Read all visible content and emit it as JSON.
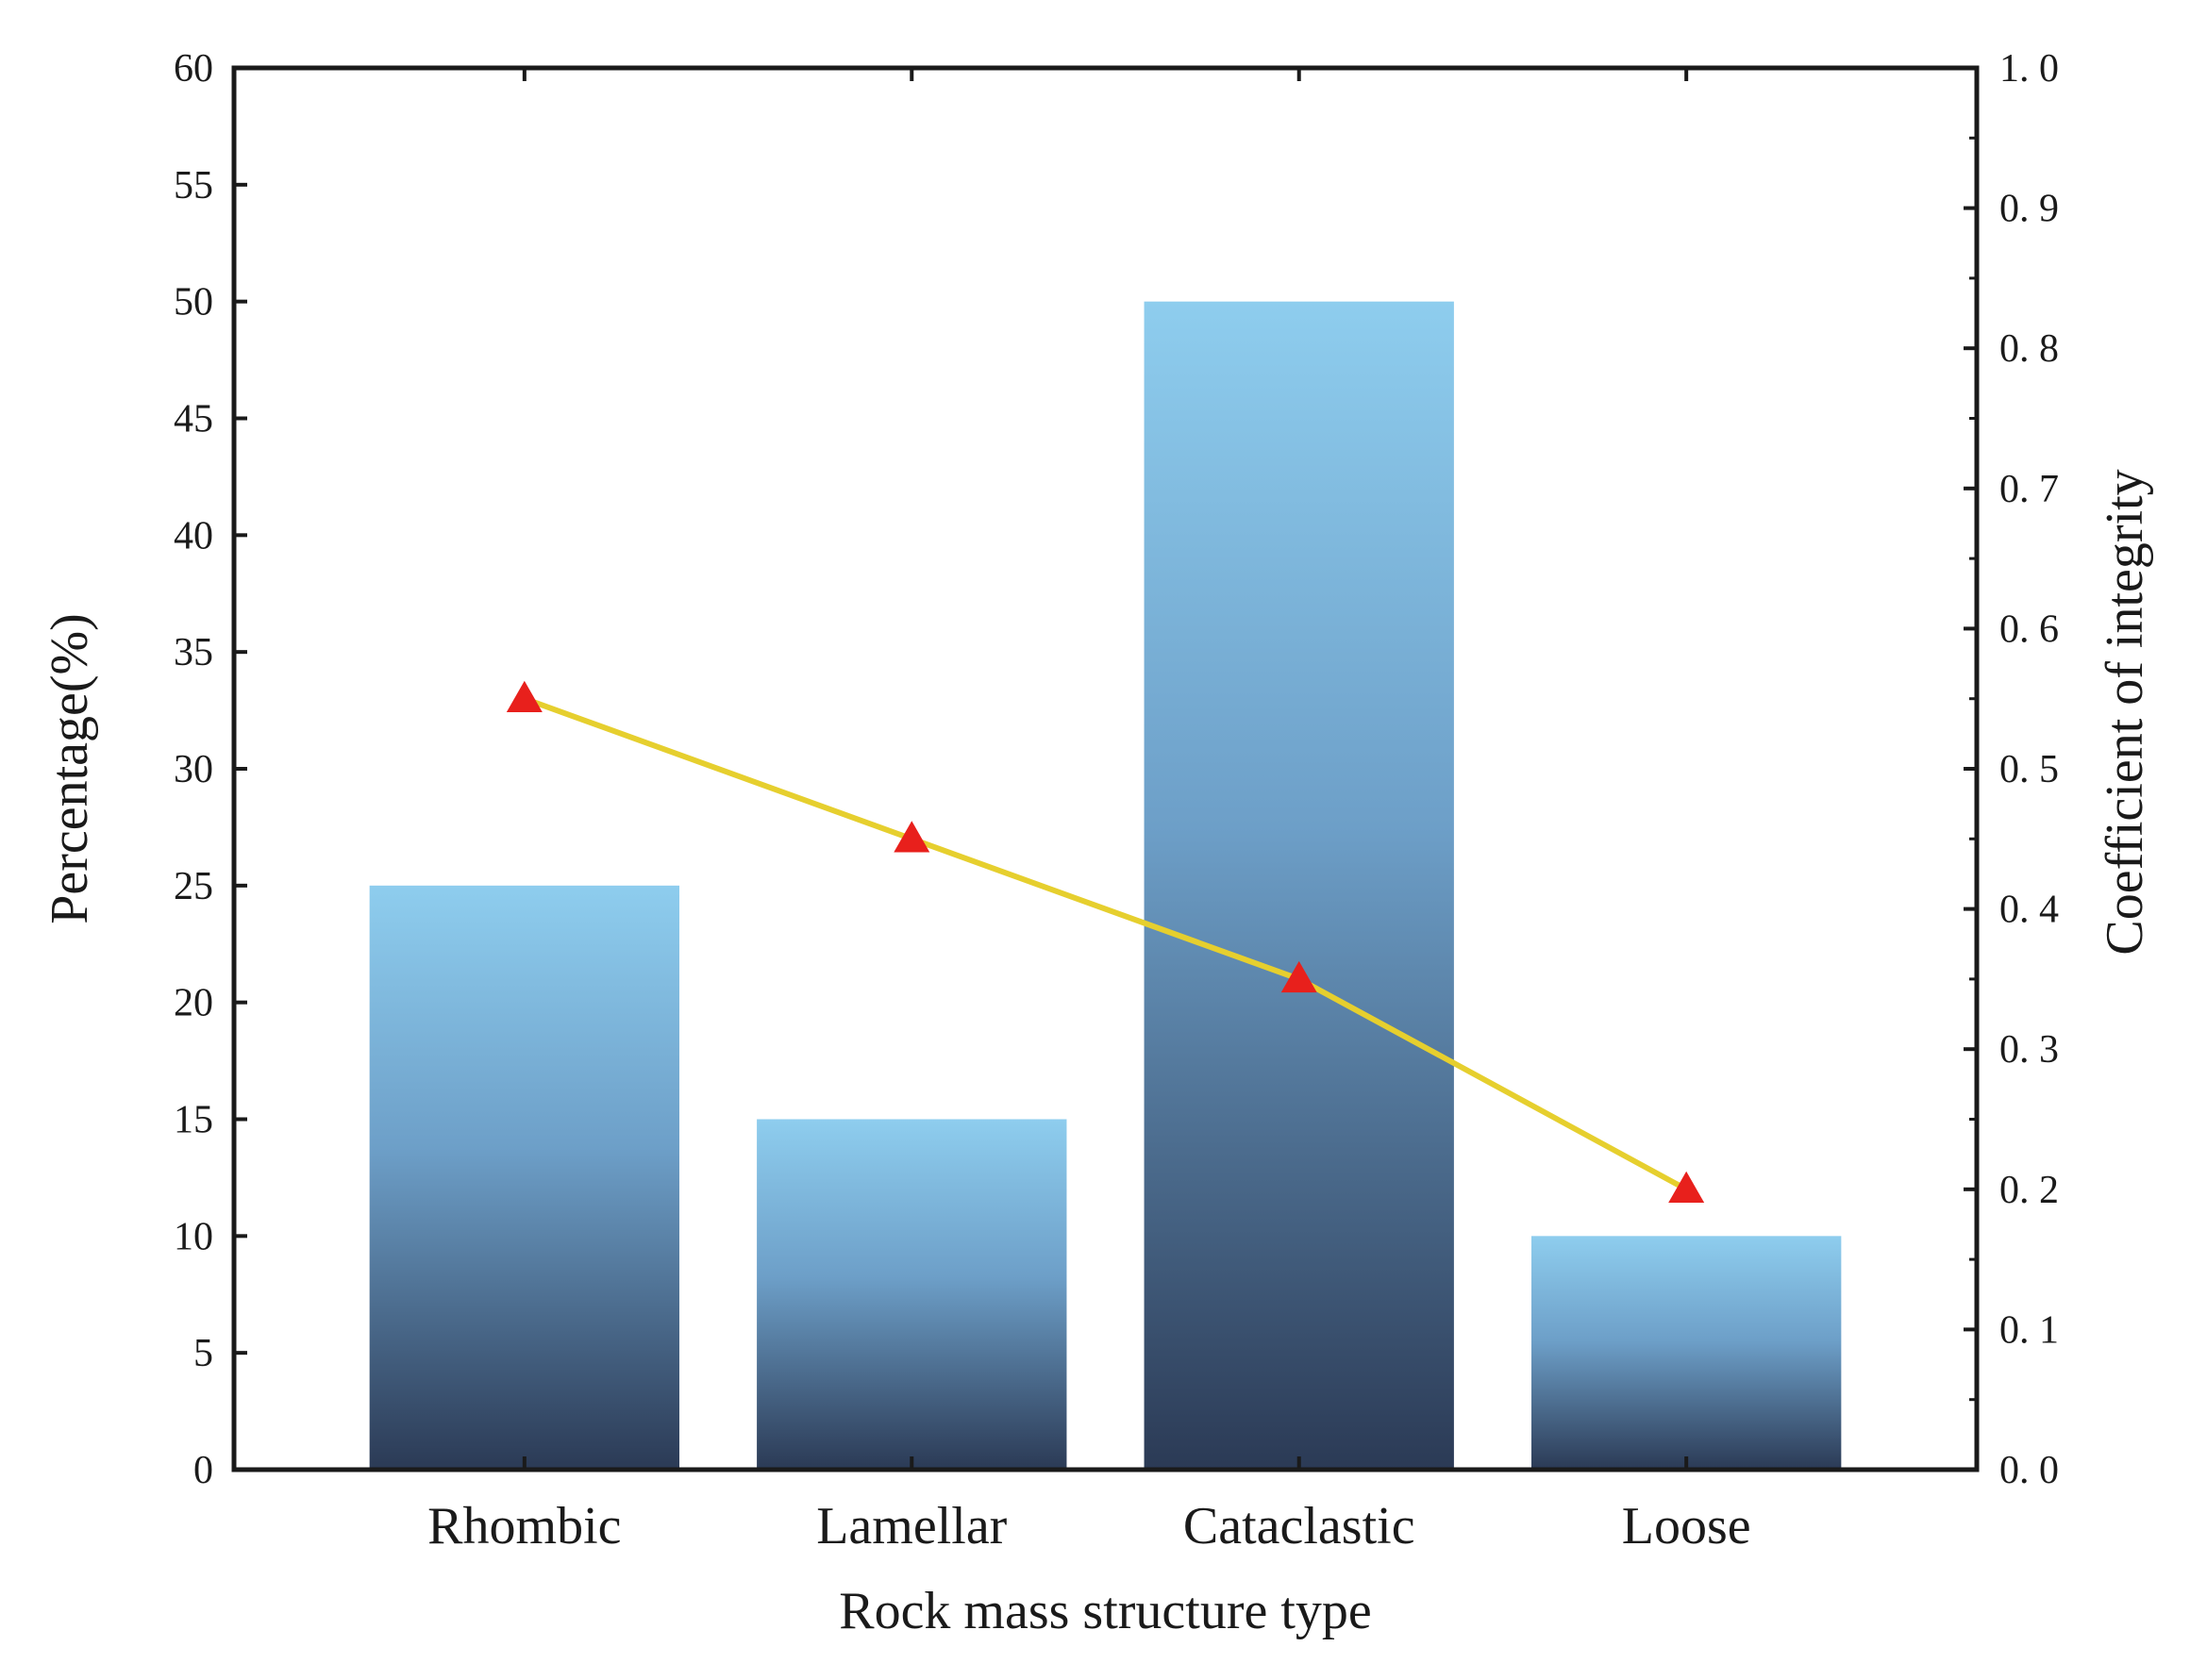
{
  "chart_data": {
    "type": "bar",
    "categories": [
      "Rhombic",
      "Lamellar",
      "Cataclastic",
      "Loose"
    ],
    "series": [
      {
        "name": "Percentage(%)",
        "type": "bar",
        "axis": "left",
        "values": [
          25,
          15,
          50,
          10
        ]
      },
      {
        "name": "Coefficient of integrity",
        "type": "line",
        "axis": "right",
        "values": [
          0.55,
          0.45,
          0.35,
          0.2
        ]
      }
    ],
    "title": "",
    "xlabel": "Rock mass structure type",
    "ylabel": "Percentage(%)",
    "y2label": "Coefficient of integrity",
    "ylim": [
      0,
      60
    ],
    "y2lim": [
      0,
      1.0
    ],
    "yticks": [
      "0",
      "5",
      "10",
      "15",
      "20",
      "25",
      "30",
      "35",
      "40",
      "45",
      "50",
      "55",
      "60"
    ],
    "y2ticks": [
      "0. 0",
      "0. 1",
      "0. 2",
      "0. 3",
      "0. 4",
      "0. 5",
      "0. 6",
      "0. 7",
      "0. 8",
      "0. 9",
      "1. 0"
    ],
    "grid": false,
    "colors": {
      "bar_top": "#8ecdee",
      "bar_mid": "#6d9fc8",
      "bar_bottom": "#2b3a55",
      "line": "#e6cf2e",
      "marker": "#e8201c",
      "axis": "#1a1a1a"
    }
  }
}
